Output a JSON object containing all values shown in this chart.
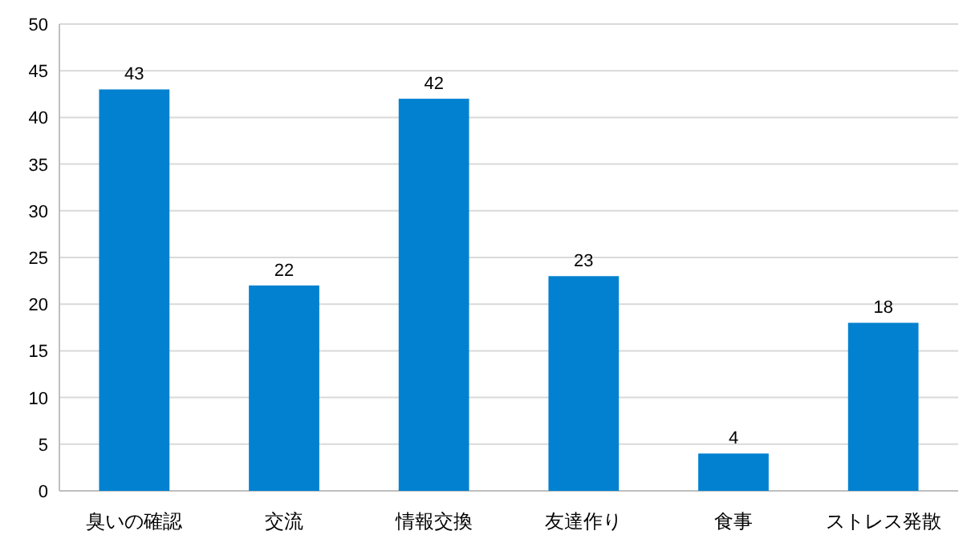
{
  "chart_data": {
    "type": "bar",
    "categories": [
      "臭いの確認",
      "交流",
      "情報交換",
      "友達作り",
      "食事",
      "ストレス発散"
    ],
    "values": [
      43,
      22,
      42,
      23,
      4,
      18
    ],
    "color": "#0281d0",
    "ylim": [
      0,
      50
    ],
    "yticks": [
      0,
      5,
      10,
      15,
      20,
      25,
      30,
      35,
      40,
      45,
      50
    ],
    "grid": "y",
    "data_labels": true
  }
}
